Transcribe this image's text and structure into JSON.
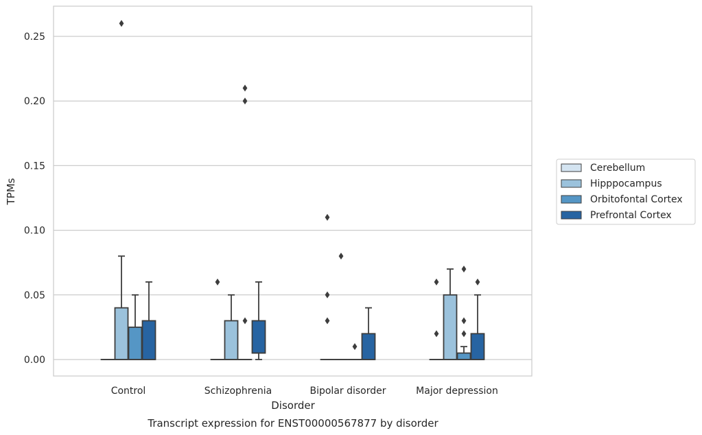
{
  "chart_data": {
    "type": "box",
    "title": "",
    "caption": "Transcript expression for ENST00000567877 by disorder",
    "xlabel": "Disorder",
    "ylabel": "TPMs",
    "ylim": [
      -0.0125,
      0.2735
    ],
    "yticks": [
      0.0,
      0.05,
      0.1,
      0.15,
      0.2,
      0.25
    ],
    "ytick_labels": [
      "0.00",
      "0.05",
      "0.10",
      "0.15",
      "0.20",
      "0.25"
    ],
    "grid": "horizontal",
    "legend_position": "right",
    "categories": [
      "Control",
      "Schizophrenia",
      "Bipolar disorder",
      "Major depression"
    ],
    "series": [
      {
        "name": "Cerebellum",
        "color": "#d4e4f1",
        "boxes": [
          {
            "min": 0,
            "q1": 0,
            "median": 0,
            "q3": 0,
            "max": 0,
            "outliers": []
          },
          {
            "min": 0,
            "q1": 0,
            "median": 0,
            "q3": 0,
            "max": 0,
            "outliers": [
              0.06
            ]
          },
          {
            "min": 0,
            "q1": 0,
            "median": 0,
            "q3": 0,
            "max": 0,
            "outliers": [
              0.11,
              0.05,
              0.03
            ]
          },
          {
            "min": 0,
            "q1": 0,
            "median": 0,
            "q3": 0,
            "max": 0,
            "outliers": [
              0.06,
              0.02
            ]
          }
        ]
      },
      {
        "name": "Hipppocampus",
        "color": "#9bc2dc",
        "boxes": [
          {
            "min": 0,
            "q1": 0,
            "median": 0,
            "q3": 0.04,
            "max": 0.08,
            "outliers": [
              0.26
            ]
          },
          {
            "min": 0,
            "q1": 0,
            "median": 0,
            "q3": 0.03,
            "max": 0.05,
            "outliers": []
          },
          {
            "min": 0,
            "q1": 0,
            "median": 0,
            "q3": 0,
            "max": 0,
            "outliers": [
              0.08
            ]
          },
          {
            "min": 0,
            "q1": 0,
            "median": 0,
            "q3": 0.05,
            "max": 0.07,
            "outliers": []
          }
        ]
      },
      {
        "name": "Orbitofontal Cortex",
        "color": "#5596c5",
        "boxes": [
          {
            "min": 0,
            "q1": 0,
            "median": 0,
            "q3": 0.025,
            "max": 0.05,
            "outliers": []
          },
          {
            "min": 0,
            "q1": 0,
            "median": 0,
            "q3": 0,
            "max": 0,
            "outliers": [
              0.21,
              0.2,
              0.03
            ]
          },
          {
            "min": 0,
            "q1": 0,
            "median": 0,
            "q3": 0,
            "max": 0,
            "outliers": [
              0.01
            ]
          },
          {
            "min": 0,
            "q1": 0,
            "median": 0,
            "q3": 0.005,
            "max": 0.01,
            "outliers": [
              0.07,
              0.03,
              0.02
            ]
          }
        ]
      },
      {
        "name": "Prefrontal Cortex",
        "color": "#2764a2",
        "boxes": [
          {
            "min": 0,
            "q1": 0,
            "median": 0,
            "q3": 0.03,
            "max": 0.06,
            "outliers": []
          },
          {
            "min": 0,
            "q1": 0.005,
            "median": 0.005,
            "q3": 0.03,
            "max": 0.06,
            "outliers": []
          },
          {
            "min": 0,
            "q1": 0,
            "median": 0,
            "q3": 0.02,
            "max": 0.04,
            "outliers": []
          },
          {
            "min": 0,
            "q1": 0,
            "median": 0,
            "q3": 0.02,
            "max": 0.05,
            "outliers": [
              0.06
            ]
          }
        ]
      }
    ]
  }
}
